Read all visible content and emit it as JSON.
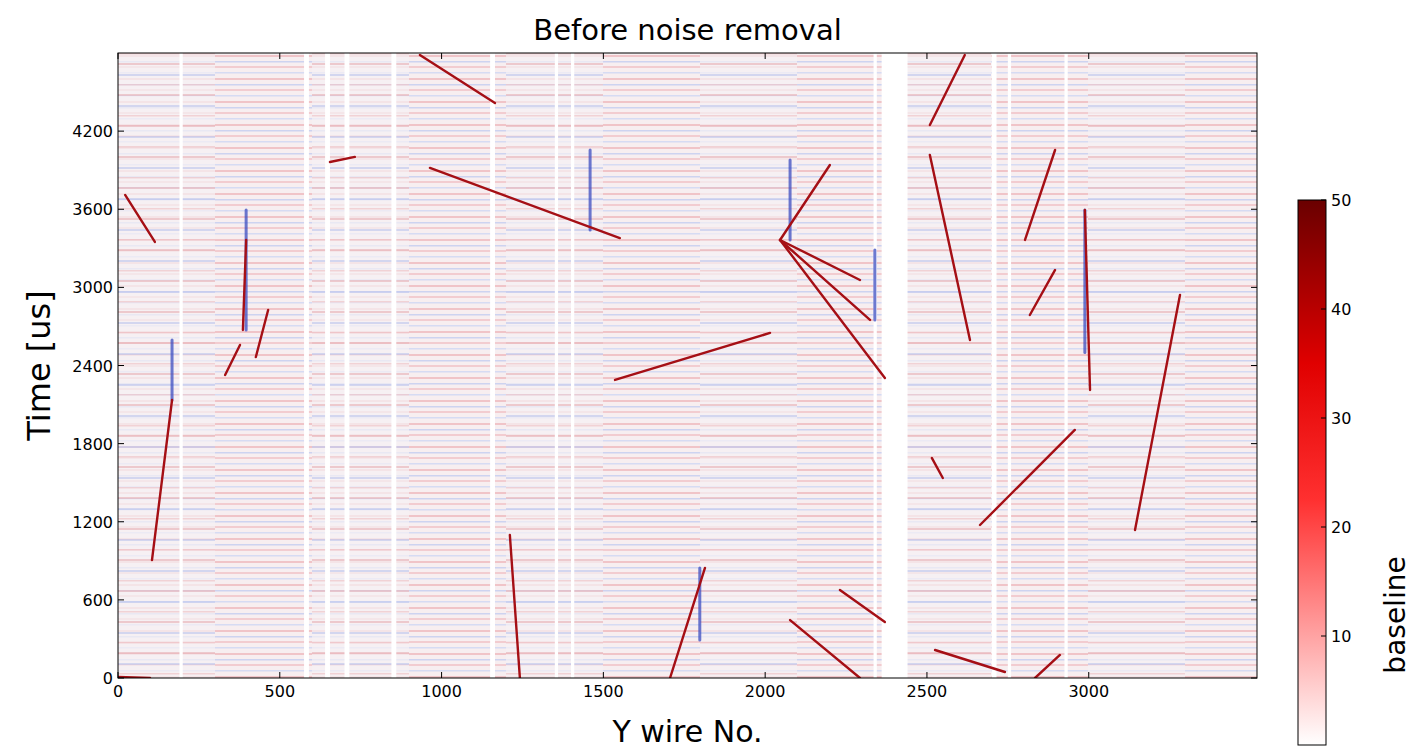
{
  "chart_data": {
    "type": "heatmap",
    "title": "Before noise removal",
    "x_label": "Y wire No.",
    "y_label": "Time [us]",
    "xlim": [
      0,
      3520
    ],
    "ylim": [
      0,
      4800
    ],
    "xticks": [
      0,
      500,
      1000,
      1500,
      2000,
      2500,
      3000
    ],
    "yticks": [
      0,
      600,
      1200,
      1800,
      2400,
      3000,
      3600,
      4200
    ],
    "color": "#a50f15",
    "tracks": [
      {
        "x": [
          22,
          114
        ],
        "y": [
          3710,
          3349
        ]
      },
      {
        "x": [
          377,
          331
        ],
        "y": [
          2558,
          2327
        ]
      },
      {
        "x": [
          464,
          426
        ],
        "y": [
          2826,
          2465
        ]
      },
      {
        "x": [
          396,
          396
        ],
        "y": [
          3594,
          2673
        ],
        "color": "#3b4cc0"
      },
      {
        "x": [
          396,
          386
        ],
        "y": [
          3364,
          2673
        ]
      },
      {
        "x": [
          167,
          167
        ],
        "y": [
          2596,
          2135
        ],
        "color": "#3b4cc0"
      },
      {
        "x": [
          167,
          105
        ],
        "y": [
          2135,
          906
        ]
      },
      {
        "x": [
          933,
          1165
        ],
        "y": [
          4785,
          4416
        ]
      },
      {
        "x": [
          655,
          732
        ],
        "y": [
          3963,
          4002
        ]
      },
      {
        "x": [
          1459,
          1459
        ],
        "y": [
          4055,
          3441
        ],
        "color": "#3b4cc0"
      },
      {
        "x": [
          964,
          1551
        ],
        "y": [
          3917,
          3379
        ]
      },
      {
        "x": [
          1536,
          2015
        ],
        "y": [
          2289,
          2650
        ]
      },
      {
        "x": [
          2077,
          2077
        ],
        "y": [
          3978,
          3364
        ],
        "color": "#3b4cc0"
      },
      {
        "x": [
          2339,
          2339
        ],
        "y": [
          3287,
          2750
        ],
        "color": "#3b4cc0"
      },
      {
        "x": [
          2046,
          2200
        ],
        "y": [
          3364,
          3940
        ]
      },
      {
        "x": [
          2046,
          2293
        ],
        "y": [
          3364,
          3057
        ]
      },
      {
        "x": [
          2046,
          2370
        ],
        "y": [
          3364,
          2304
        ]
      },
      {
        "x": [
          2046,
          2324
        ],
        "y": [
          3364,
          2750
        ]
      },
      {
        "x": [
          2509,
          2617
        ],
        "y": [
          4247,
          4785
        ]
      },
      {
        "x": [
          2509,
          2633
        ],
        "y": [
          4017,
          2596
        ]
      },
      {
        "x": [
          2803,
          2896
        ],
        "y": [
          3364,
          4055
        ]
      },
      {
        "x": [
          2818,
          2896
        ],
        "y": [
          2788,
          3134
        ]
      },
      {
        "x": [
          2988,
          2988
        ],
        "y": [
          3594,
          2500
        ],
        "color": "#3b4cc0"
      },
      {
        "x": [
          2988,
          3004
        ],
        "y": [
          3594,
          2212
        ]
      },
      {
        "x": [
          3143,
          3282
        ],
        "y": [
          1137,
          2942
        ]
      },
      {
        "x": [
          2664,
          2957
        ],
        "y": [
          1175,
          1905
        ]
      },
      {
        "x": [
          2515,
          2549
        ],
        "y": [
          1690,
          1536
        ]
      },
      {
        "x": [
          1211,
          1242
        ],
        "y": [
          1098,
          0
        ]
      },
      {
        "x": [
          1798,
          1798
        ],
        "y": [
          845,
          292
        ],
        "color": "#3b4cc0"
      },
      {
        "x": [
          1706,
          1814
        ],
        "y": [
          0,
          845
        ]
      },
      {
        "x": [
          2077,
          2293
        ],
        "y": [
          445,
          0
        ]
      },
      {
        "x": [
          2231,
          2370
        ],
        "y": [
          676,
          430
        ]
      },
      {
        "x": [
          2525,
          2741
        ],
        "y": [
          215,
          46
        ]
      },
      {
        "x": [
          2834,
          2911
        ],
        "y": [
          0,
          177
        ]
      },
      {
        "x": [
          0,
          99
        ],
        "y": [
          8,
          0
        ]
      }
    ],
    "dead_wires": [
      [
        190,
        200
      ],
      [
        575,
        590
      ],
      [
        640,
        655
      ],
      [
        700,
        715
      ],
      [
        845,
        860
      ],
      [
        1150,
        1165
      ],
      [
        1350,
        1360
      ],
      [
        1400,
        1410
      ],
      [
        2335,
        2345
      ],
      [
        2360,
        2440
      ],
      [
        2700,
        2715
      ],
      [
        2750,
        2760
      ],
      [
        2925,
        2935
      ]
    ],
    "colorbar": {
      "range": [
        0,
        50
      ],
      "ticks": [
        10,
        20,
        30,
        40,
        50
      ],
      "label": "baseline"
    }
  }
}
